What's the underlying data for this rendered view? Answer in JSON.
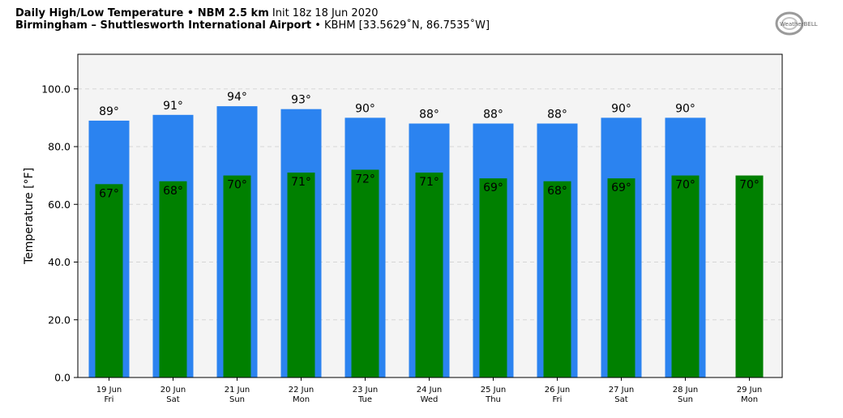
{
  "header": {
    "title_bold": "Daily High/Low Temperature • NBM 2.5 km",
    "title_rest": "Init 18z 18 Jun 2020",
    "location_bold": "Birmingham – Shuttlesworth International Airport",
    "location_rest": "• KBHM [33.5629˚N, 86.7535˚W]"
  },
  "logo": {
    "text": "WeatherBELL",
    "name": "weatherbell-logo"
  },
  "colors": {
    "high": "#2b83f0",
    "low": "#008000",
    "plot_bg": "#f4f4f4",
    "grid": "#d6d6d6"
  },
  "chart_data": {
    "type": "bar",
    "ylabel": "Temperature [°F]",
    "ylim": [
      0,
      112
    ],
    "yticks": [
      "0.0",
      "20.0",
      "40.0",
      "60.0",
      "80.0",
      "100.0"
    ],
    "ytick_values": [
      0,
      20,
      40,
      60,
      80,
      100
    ],
    "grid": true,
    "categories": [
      {
        "date": "19 Jun",
        "day": "Fri"
      },
      {
        "date": "20 Jun",
        "day": "Sat"
      },
      {
        "date": "21 Jun",
        "day": "Sun"
      },
      {
        "date": "22 Jun",
        "day": "Mon"
      },
      {
        "date": "23 Jun",
        "day": "Tue"
      },
      {
        "date": "24 Jun",
        "day": "Wed"
      },
      {
        "date": "25 Jun",
        "day": "Thu"
      },
      {
        "date": "26 Jun",
        "day": "Fri"
      },
      {
        "date": "27 Jun",
        "day": "Sat"
      },
      {
        "date": "28 Jun",
        "day": "Sun"
      },
      {
        "date": "29 Jun",
        "day": "Mon"
      }
    ],
    "series": [
      {
        "key": "high",
        "values": [
          89,
          91,
          94,
          93,
          90,
          88,
          88,
          88,
          90,
          90,
          null
        ],
        "labels": [
          "89°",
          "91°",
          "94°",
          "93°",
          "90°",
          "88°",
          "88°",
          "88°",
          "90°",
          "90°",
          ""
        ]
      },
      {
        "key": "low",
        "values": [
          67,
          68,
          70,
          71,
          72,
          71,
          69,
          68,
          69,
          70,
          70
        ],
        "labels": [
          "67°",
          "68°",
          "70°",
          "71°",
          "72°",
          "71°",
          "69°",
          "68°",
          "69°",
          "70°",
          "70°"
        ]
      }
    ]
  }
}
